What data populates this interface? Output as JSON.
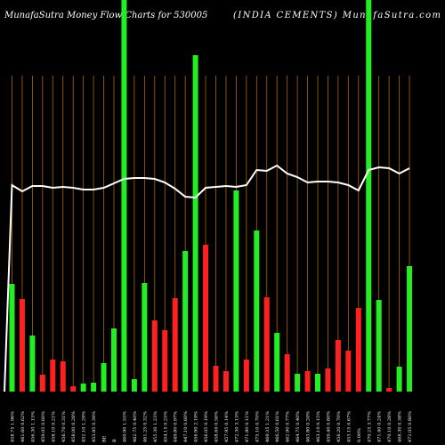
{
  "chart_data": {
    "type": "bar",
    "title": "MunafaSutra  Money Flow  Charts for 530005",
    "subtitle": "(INDIA CEMENTS) MunafaSutra.com",
    "categories": [
      "458.75 1.96%",
      "461.60 0.62%",
      "456.30 1.15%",
      "459.05 0.60%",
      "458.10 0.21%",
      "456.70 0.31%",
      "458.00 0.28%",
      "452.10 1.29%",
      "453.85 0.39%",
      "BE",
      "B",
      "460.90 1.55%",
      "462.75 0.40%",
      "461.25 0.32%",
      "455.30 1.23%",
      "454.15 0.25%",
      "449.80 0.97%",
      "447.10 0.60%",
      "456.90 2.19%",
      "456.05 0.19%",
      "458.60 0.56%",
      "457.95 0.14%",
      "472.30 3.13%",
      "471.80 0.11%",
      "475.10 0.70%",
      "469.35 1.21%",
      "466.50 0.61%",
      "462.90 0.77%",
      "464.75 0.40%",
      "463.80 0.20%",
      "463.10 0.15%",
      "459.40 0.80%",
      "456.20 0.70%",
      "453.15 0.67%",
      "0.00%",
      "470.25 3.77%",
      "471.40 0.24%",
      "470.10 0.28%",
      "468.30 0.38%",
      "472.05 0.80%"
    ],
    "series": [
      {
        "name": "Money Flow",
        "values": [
          121,
          104,
          63,
          19,
          36,
          34,
          6,
          9,
          10,
          32,
          71,
          440,
          14,
          122,
          80,
          69,
          105,
          158,
          378,
          165,
          29,
          23,
          226,
          36,
          181,
          106,
          66,
          42,
          20,
          23,
          20,
          26,
          58,
          46,
          94,
          440,
          103,
          4,
          28,
          141
        ],
        "colors": [
          "#22ee22",
          "#ff2020",
          "#22ee22",
          "#ff2020",
          "#ff2020",
          "#ff2020",
          "#ff2020",
          "#22ee22",
          "#22ee22",
          "#22ee22",
          "#22ee22",
          "#22ee22",
          "#22ee22",
          "#22ee22",
          "#ff2020",
          "#ff2020",
          "#ff2020",
          "#22ee22",
          "#22ee22",
          "#ff2020",
          "#ff2020",
          "#ff2020",
          "#22ee22",
          "#ff2020",
          "#22ee22",
          "#ff2020",
          "#22ee22",
          "#ff2020",
          "#22ee22",
          "#ff2020",
          "#22ee22",
          "#ff2020",
          "#ff2020",
          "#ff2020",
          "#ff2020",
          "#22ee22",
          "#22ee22",
          "#ff2020",
          "#22ee22",
          "#22ee22"
        ]
      },
      {
        "name": "Price",
        "axis": "y2",
        "color": "#ffffff",
        "values": [
          232,
          225,
          231,
          231,
          229,
          230,
          229,
          227,
          227,
          229,
          234,
          239,
          240,
          240,
          239,
          235,
          228,
          219,
          218,
          229,
          230,
          231,
          230,
          232,
          249,
          248,
          254,
          245,
          241,
          235,
          236,
          236,
          235,
          232,
          226,
          249,
          252,
          251,
          245,
          251
        ]
      }
    ],
    "ylim": [
      0,
      440
    ],
    "y2lim": [
      0,
      440
    ],
    "grid_color": "#b06800"
  }
}
